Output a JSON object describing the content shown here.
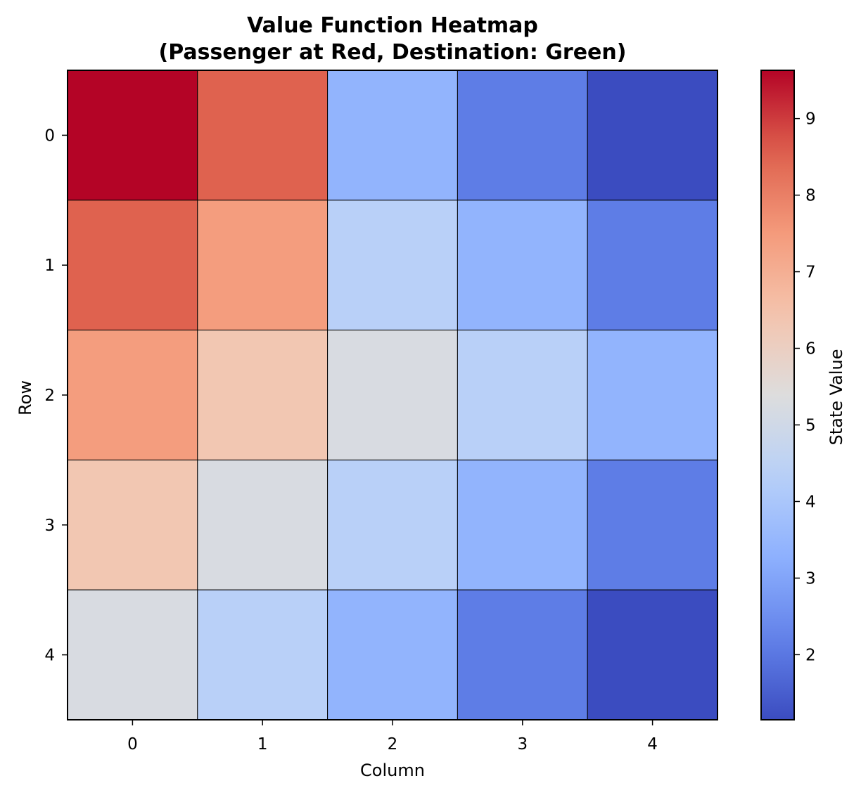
{
  "colors": {
    "colormap": "coolwarm",
    "cell_border": "#000000",
    "axis": "#000000"
  },
  "chart_data": {
    "type": "heatmap",
    "title": "Value Function Heatmap",
    "subtitle": "(Passenger at Red, Destination: Green)",
    "xlabel": "Column",
    "ylabel": "Row",
    "x_categories": [
      "0",
      "1",
      "2",
      "3",
      "4"
    ],
    "y_categories": [
      "0",
      "1",
      "2",
      "3",
      "4"
    ],
    "values": [
      [
        9.63,
        8.53,
        3.4,
        2.11,
        1.15
      ],
      [
        8.53,
        7.44,
        4.35,
        3.4,
        2.11
      ],
      [
        7.44,
        6.33,
        5.24,
        4.35,
        3.4
      ],
      [
        6.33,
        5.24,
        4.35,
        3.4,
        2.11
      ],
      [
        5.24,
        4.35,
        3.4,
        2.11,
        1.15
      ]
    ],
    "colorbar": {
      "label": "State Value",
      "min": 1.15,
      "max": 9.63,
      "ticks": [
        2,
        3,
        4,
        5,
        6,
        7,
        8,
        9
      ]
    },
    "grid": false,
    "legend": "none"
  }
}
